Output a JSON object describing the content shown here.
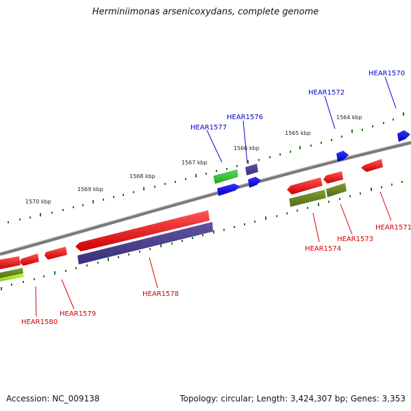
{
  "title": "Herminiimonas arsenicoxydans, complete genome",
  "footer": {
    "accession": "Accession: NC_009138",
    "summary": "Topology: circular; Length: 3,424,307 bp; Genes: 3,353"
  },
  "scale_labels": [
    "1570 kbp",
    "1569 kbp",
    "1568 kbp",
    "1567 kbp",
    "1566 kbp",
    "1565 kbp",
    "1564 kbp"
  ],
  "gene_labels": {
    "HEAR1570": "HEAR1570",
    "HEAR1572": "HEAR1572",
    "HEAR1576": "HEAR1576",
    "HEAR1577": "HEAR1577",
    "HEAR1571": "HEAR1571",
    "HEAR1573": "HEAR1573",
    "HEAR1574": "HEAR1574",
    "HEAR1578": "HEAR1578",
    "HEAR1579": "HEAR1579",
    "HEAR1580": "HEAR1580"
  },
  "colors": {
    "forward_label": "#0000cc",
    "reverse_label": "#cc0000",
    "tick": "#1a7a1a",
    "backbone": "#7a7a7a",
    "gene_red": "#ee1111",
    "gene_blue": "#1111ee",
    "gene_green": "#33cc33",
    "gene_olive": "#6b8e23",
    "gene_purple": "#4b3f8c",
    "gene_lime": "#aaee22"
  }
}
